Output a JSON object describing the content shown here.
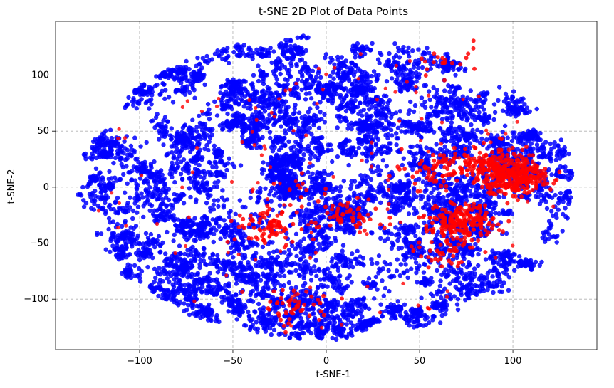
{
  "chart_data": {
    "type": "scatter",
    "title": "t-SNE 2D Plot of Data Points",
    "xlabel": "t-SNE-1",
    "ylabel": "t-SNE-2",
    "xlim": [
      -145,
      145
    ],
    "ylim": [
      -145,
      148
    ],
    "x_ticks": [
      -100,
      -50,
      0,
      50,
      100
    ],
    "x_tick_labels": [
      "−100",
      "−50",
      "0",
      "50",
      "100"
    ],
    "y_ticks": [
      -100,
      -50,
      0,
      50,
      100
    ],
    "y_tick_labels": [
      "−100",
      "−50",
      "0",
      "50",
      "100"
    ],
    "grid": true,
    "colors": {
      "majority": "#0000ff",
      "minority": "#ff0000"
    },
    "series": [
      {
        "color": "#0000ff",
        "description_cluster": "dense elliptical cloud",
        "center": [
          0,
          0
        ],
        "radius": [
          132,
          135
        ]
      },
      {
        "color": "#ff0000",
        "clusters": [
          {
            "x": 100,
            "y": 10,
            "n": 320
          },
          {
            "x": 72,
            "y": -32,
            "n": 220
          },
          {
            "x": 88,
            "y": 22,
            "n": 120
          },
          {
            "x": 62,
            "y": 15,
            "n": 70
          },
          {
            "x": 12,
            "y": -25,
            "n": 60
          },
          {
            "x": -30,
            "y": -35,
            "n": 80
          },
          {
            "x": -18,
            "y": -105,
            "n": 45
          },
          {
            "x": 62,
            "y": -58,
            "n": 35
          },
          {
            "x": 66,
            "y": 110,
            "n": 20
          },
          {
            "x": -15,
            "y": 0,
            "n": 10
          }
        ]
      }
    ]
  }
}
